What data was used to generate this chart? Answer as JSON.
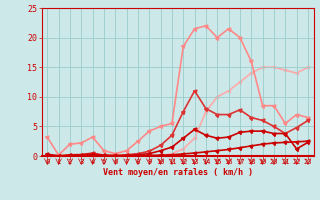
{
  "xlabel": "Vent moyen/en rafales ( km/h )",
  "bg_color": "#cce8e8",
  "grid_color": "#99cccc",
  "x": [
    0,
    1,
    2,
    3,
    4,
    5,
    6,
    7,
    8,
    9,
    10,
    11,
    12,
    13,
    14,
    15,
    16,
    17,
    18,
    19,
    20,
    21,
    22,
    23
  ],
  "series": [
    {
      "y": [
        0.3,
        0.05,
        0.05,
        0.05,
        0.05,
        0.05,
        0.05,
        0.05,
        0.05,
        0.1,
        0.15,
        0.2,
        0.35,
        0.5,
        0.7,
        0.9,
        1.1,
        1.4,
        1.7,
        2.0,
        2.2,
        2.3,
        2.4,
        2.5
      ],
      "color": "#cc0000",
      "lw": 1.2,
      "ms": 3.0,
      "zorder": 5
    },
    {
      "y": [
        0.0,
        0.0,
        0.15,
        0.2,
        0.3,
        0.1,
        0.05,
        0.1,
        0.2,
        0.4,
        0.9,
        1.5,
        3.0,
        4.5,
        3.5,
        3.0,
        3.2,
        4.0,
        4.2,
        4.2,
        3.8,
        3.8,
        1.2,
        2.3
      ],
      "color": "#cc0000",
      "lw": 1.2,
      "ms": 3.0,
      "zorder": 4
    },
    {
      "y": [
        0.0,
        0.0,
        0.2,
        0.25,
        0.5,
        0.15,
        0.1,
        0.2,
        0.4,
        0.8,
        1.8,
        3.5,
        7.5,
        11.0,
        8.0,
        7.0,
        7.0,
        7.8,
        6.5,
        6.0,
        5.0,
        3.8,
        4.8,
        6.0
      ],
      "color": "#dd3333",
      "lw": 1.2,
      "ms": 3.0,
      "zorder": 3
    },
    {
      "y": [
        3.2,
        0.15,
        2.0,
        2.2,
        3.2,
        0.9,
        0.4,
        0.9,
        2.5,
        4.2,
        5.0,
        5.5,
        18.5,
        21.5,
        22.0,
        20.0,
        21.5,
        20.0,
        16.0,
        8.5,
        8.5,
        5.5,
        7.0,
        6.5
      ],
      "color": "#ff8888",
      "lw": 1.2,
      "ms": 3.0,
      "zorder": 2
    },
    {
      "y": [
        0.0,
        0.0,
        0.0,
        0.0,
        0.0,
        0.0,
        0.0,
        0.0,
        0.0,
        0.0,
        0.0,
        0.4,
        1.2,
        3.0,
        7.5,
        10.0,
        11.0,
        12.5,
        14.0,
        15.0,
        15.0,
        14.5,
        14.0,
        15.0
      ],
      "color": "#ffaaaa",
      "lw": 1.2,
      "ms": 2.5,
      "zorder": 1
    }
  ],
  "xlim": [
    -0.5,
    23.5
  ],
  "ylim": [
    0,
    25
  ],
  "yticks": [
    0,
    5,
    10,
    15,
    20,
    25
  ],
  "xticks": [
    0,
    1,
    2,
    3,
    4,
    5,
    6,
    7,
    8,
    9,
    10,
    11,
    12,
    13,
    14,
    15,
    16,
    17,
    18,
    19,
    20,
    21,
    22,
    23
  ],
  "tick_color": "#cc0000",
  "label_color": "#cc0000",
  "xlabel_fontsize": 6.0,
  "tick_fontsize": 5.0,
  "ytick_fontsize": 6.0
}
